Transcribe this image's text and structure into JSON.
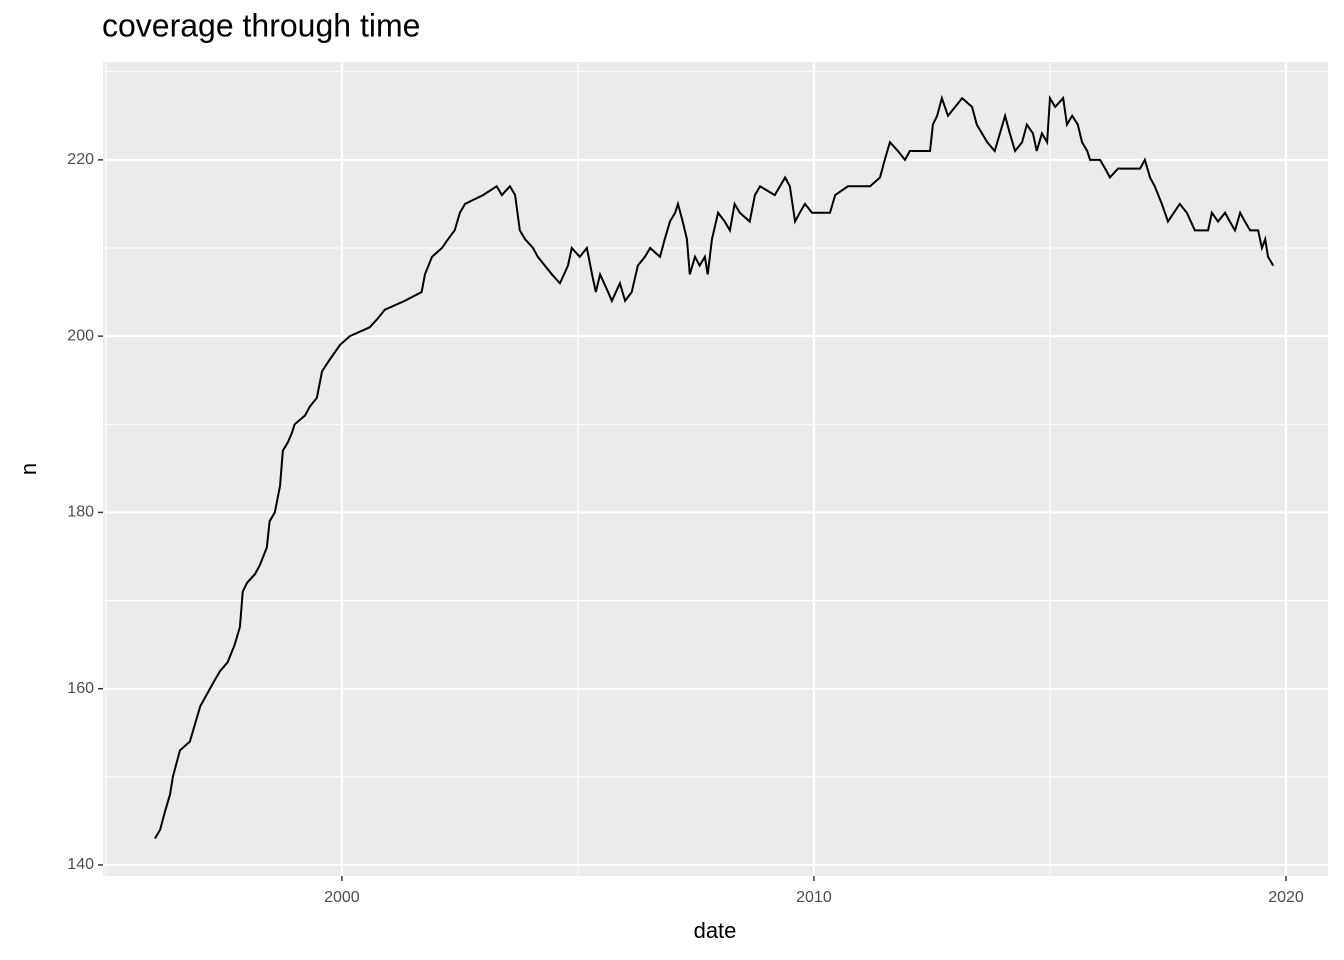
{
  "chart_data": {
    "type": "line",
    "title": "coverage through time",
    "x_label": "date",
    "y_label": "n",
    "x": [
      1996.04,
      1996.15,
      1996.25,
      1996.36,
      1996.42,
      1996.57,
      1996.78,
      1996.89,
      1997.0,
      1997.31,
      1997.42,
      1997.58,
      1997.73,
      1997.84,
      1997.9,
      1997.99,
      1998.16,
      1998.26,
      1998.41,
      1998.47,
      1998.58,
      1998.69,
      1998.75,
      1998.86,
      1998.94,
      1999.0,
      1999.22,
      1999.32,
      1999.47,
      1999.58,
      1999.7,
      1999.83,
      1999.96,
      2000.17,
      2000.59,
      2000.76,
      2000.91,
      2001.33,
      2001.69,
      2001.76,
      2001.91,
      2002.12,
      2002.25,
      2002.39,
      2002.5,
      2002.61,
      2002.99,
      2003.28,
      2003.39,
      2003.56,
      2003.67,
      2003.77,
      2003.88,
      2004.05,
      2004.15,
      2004.3,
      2004.45,
      2004.62,
      2004.79,
      2004.87,
      2005.04,
      2005.19,
      2005.3,
      2005.38,
      2005.47,
      2005.64,
      2005.72,
      2005.89,
      2006.0,
      2006.14,
      2006.27,
      2006.42,
      2006.53,
      2006.74,
      2006.84,
      2006.95,
      2007.06,
      2007.12,
      2007.22,
      2007.31,
      2007.37,
      2007.48,
      2007.58,
      2007.69,
      2007.75,
      2007.84,
      2007.97,
      2008.11,
      2008.22,
      2008.32,
      2008.43,
      2008.64,
      2008.75,
      2008.86,
      2009.17,
      2009.39,
      2009.49,
      2009.6,
      2009.7,
      2009.81,
      2009.96,
      2010.34,
      2010.45,
      2010.72,
      2010.93,
      2011.19,
      2011.4,
      2011.5,
      2011.61,
      2011.78,
      2011.93,
      2012.03,
      2012.46,
      2012.52,
      2012.61,
      2012.71,
      2012.84,
      2012.99,
      2013.14,
      2013.35,
      2013.45,
      2013.56,
      2013.67,
      2013.83,
      2013.94,
      2014.05,
      2014.15,
      2014.26,
      2014.41,
      2014.51,
      2014.64,
      2014.72,
      2014.83,
      2014.94,
      2015.0,
      2015.11,
      2015.28,
      2015.36,
      2015.47,
      2015.59,
      2015.68,
      2015.79,
      2015.85,
      2016.06,
      2016.17,
      2016.27,
      2016.44,
      2016.69,
      2016.91,
      2017.01,
      2017.12,
      2017.22,
      2017.37,
      2017.5,
      2017.75,
      2017.9,
      2018.07,
      2018.35,
      2018.43,
      2018.56,
      2018.71,
      2018.81,
      2018.92,
      2019.03,
      2019.13,
      2019.24,
      2019.41,
      2019.49,
      2019.56,
      2019.62,
      2019.73
    ],
    "values": [
      143,
      144,
      146,
      148,
      150,
      153,
      154,
      156,
      158,
      161,
      162,
      163,
      165,
      167,
      171,
      172,
      173,
      174,
      176,
      179,
      180,
      183,
      187,
      188,
      189,
      190,
      191,
      192,
      193,
      196,
      197,
      198,
      199,
      200,
      201,
      202,
      203,
      204,
      205,
      207,
      209,
      210,
      211,
      212,
      214,
      215,
      216,
      217,
      216,
      217,
      216,
      212,
      211,
      210,
      209,
      208,
      207,
      206,
      208,
      210,
      209,
      210,
      207,
      205,
      207,
      205,
      204,
      206,
      204,
      205,
      208,
      209,
      210,
      209,
      211,
      213,
      214,
      215,
      213,
      211,
      207,
      209,
      208,
      209,
      207,
      211,
      214,
      213,
      212,
      215,
      214,
      213,
      216,
      217,
      216,
      218,
      217,
      213,
      214,
      215,
      214,
      214,
      216,
      217,
      217,
      217,
      218,
      220,
      222,
      221,
      220,
      221,
      221,
      224,
      225,
      227,
      225,
      226,
      227,
      226,
      224,
      223,
      222,
      221,
      223,
      225,
      223,
      221,
      222,
      224,
      223,
      221,
      223,
      222,
      227,
      226,
      227,
      224,
      225,
      224,
      222,
      221,
      220,
      220,
      219,
      218,
      219,
      219,
      219,
      220,
      218,
      217,
      215,
      213,
      215,
      214,
      212,
      212,
      214,
      213,
      214,
      213,
      212,
      214,
      213,
      212,
      212,
      210,
      211,
      209,
      208
    ],
    "color": "#000000",
    "xlim": [
      1994.94,
      2020.89
    ],
    "xticks": [
      2000,
      2010,
      2020
    ],
    "x_minor_grid": [
      1995,
      2005,
      2015
    ],
    "ylim": [
      138.75,
      231.1
    ],
    "yticks": [
      140,
      160,
      180,
      200,
      220
    ],
    "y_minor_grid": [
      150,
      170,
      190,
      210,
      230
    ],
    "grid": true
  }
}
